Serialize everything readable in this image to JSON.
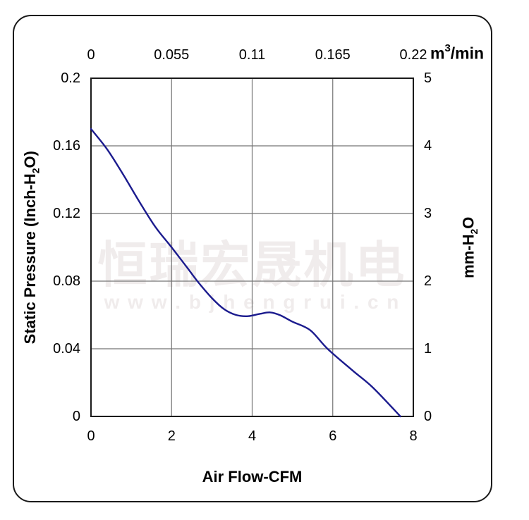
{
  "watermark": {
    "line1": "恒瑞宏晟机电",
    "line2": "w w w . b j h e n g r u i . c n"
  },
  "chart_data": {
    "type": "line",
    "title": "",
    "x_axis_bottom": {
      "label": "Air Flow-CFM",
      "ticks": [
        "0",
        "2",
        "4",
        "6",
        "8"
      ],
      "range": [
        0,
        8
      ]
    },
    "x_axis_top": {
      "unit_base": "m",
      "unit_sup": "3",
      "unit_rest": "/min",
      "ticks": [
        "0",
        "0.055",
        "0.11",
        "0.165",
        "0.22"
      ],
      "range": [
        0,
        0.22
      ]
    },
    "y_axis_left": {
      "label_pre": "Static Pressure (Inch-H",
      "label_sub": "2",
      "label_post": "O)",
      "ticks": [
        "0.2",
        "0.16",
        "0.12",
        "0.08",
        "0.04",
        "0"
      ],
      "range": [
        0,
        0.2
      ]
    },
    "y_axis_right": {
      "label_pre": "mm-H",
      "label_sub": "2",
      "label_post": "O",
      "ticks": [
        "5",
        "4",
        "3",
        "2",
        "1",
        "0"
      ],
      "range": [
        0,
        5
      ]
    },
    "grid": true,
    "series": [
      {
        "name": "static-pressure-curve",
        "color": "#1b1b8e",
        "x": [
          0,
          0.4,
          0.8,
          1.2,
          1.6,
          2.0,
          2.4,
          2.64,
          3.0,
          3.3,
          3.6,
          3.9,
          4.2,
          4.45,
          4.7,
          5.0,
          5.44,
          5.87,
          6.5,
          7.0,
          7.68
        ],
        "y": [
          0.17,
          0.158,
          0.143,
          0.127,
          0.112,
          0.1,
          0.0876,
          0.08,
          0.07,
          0.0635,
          0.06,
          0.0593,
          0.0607,
          0.0615,
          0.0598,
          0.056,
          0.051,
          0.04,
          0.027,
          0.017,
          0.0
        ]
      }
    ],
    "colors": {
      "curve": "#1b1b8e",
      "grid": "#757575",
      "plot_border": "#1a1a1a",
      "watermark": "#f0ecec"
    }
  }
}
